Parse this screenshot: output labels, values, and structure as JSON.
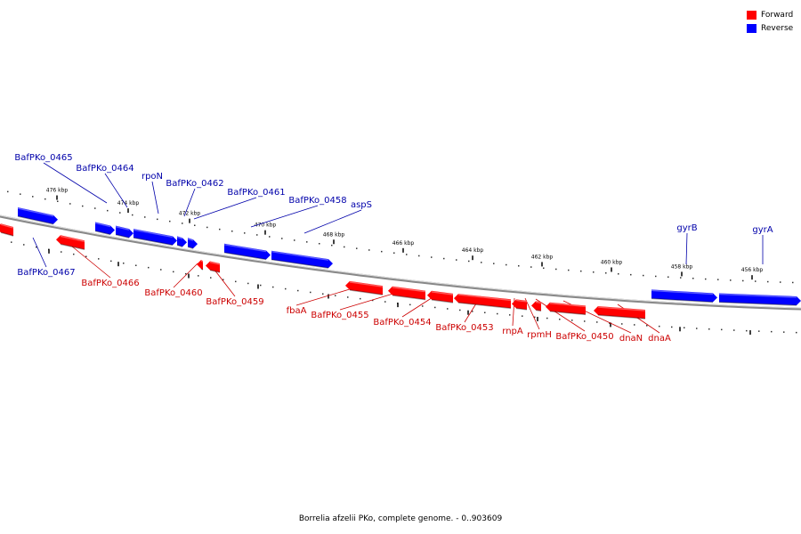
{
  "title": "Borrelia afzelii PKo, complete genome. - 0..903609",
  "legend": [
    {
      "label": "Forward",
      "color": "#ff0000"
    },
    {
      "label": "Reverse",
      "color": "#0000ff"
    }
  ],
  "colors": {
    "forward": "#ff0000",
    "reverse": "#0000ff",
    "forward_label": "#cc0000",
    "reverse_label": "#0000aa",
    "backbone": "#888888"
  },
  "ruler_ticks": [
    "476 kbp",
    "474 kbp",
    "472 kbp",
    "470 kbp",
    "468 kbp",
    "466 kbp",
    "464 kbp",
    "462 kbp",
    "460 kbp",
    "458 kbp",
    "456 kbp"
  ],
  "genes": [
    {
      "name": "BafPKo_0465",
      "strand": "reverse"
    },
    {
      "name": "BafPKo_0464",
      "strand": "reverse"
    },
    {
      "name": "rpoN",
      "strand": "reverse"
    },
    {
      "name": "BafPKo_0462",
      "strand": "reverse"
    },
    {
      "name": "BafPKo_0461",
      "strand": "reverse"
    },
    {
      "name": "BafPKo_0458",
      "strand": "reverse"
    },
    {
      "name": "aspS",
      "strand": "reverse"
    },
    {
      "name": "gyrB",
      "strand": "reverse"
    },
    {
      "name": "gyrA",
      "strand": "reverse"
    },
    {
      "name": "BafPKo_0467",
      "strand": "reverse"
    },
    {
      "name": "BafPKo_0466",
      "strand": "forward"
    },
    {
      "name": "BafPKo_0460",
      "strand": "forward"
    },
    {
      "name": "BafPKo_0459",
      "strand": "forward"
    },
    {
      "name": "fbaA",
      "strand": "forward"
    },
    {
      "name": "BafPKo_0455",
      "strand": "forward"
    },
    {
      "name": "BafPKo_0454",
      "strand": "forward"
    },
    {
      "name": "BafPKo_0453",
      "strand": "forward"
    },
    {
      "name": "rnpA",
      "strand": "forward"
    },
    {
      "name": "rpmH",
      "strand": "forward"
    },
    {
      "name": "BafPKo_0450",
      "strand": "forward"
    },
    {
      "name": "dnaN",
      "strand": "forward"
    },
    {
      "name": "dnaA",
      "strand": "forward"
    }
  ]
}
